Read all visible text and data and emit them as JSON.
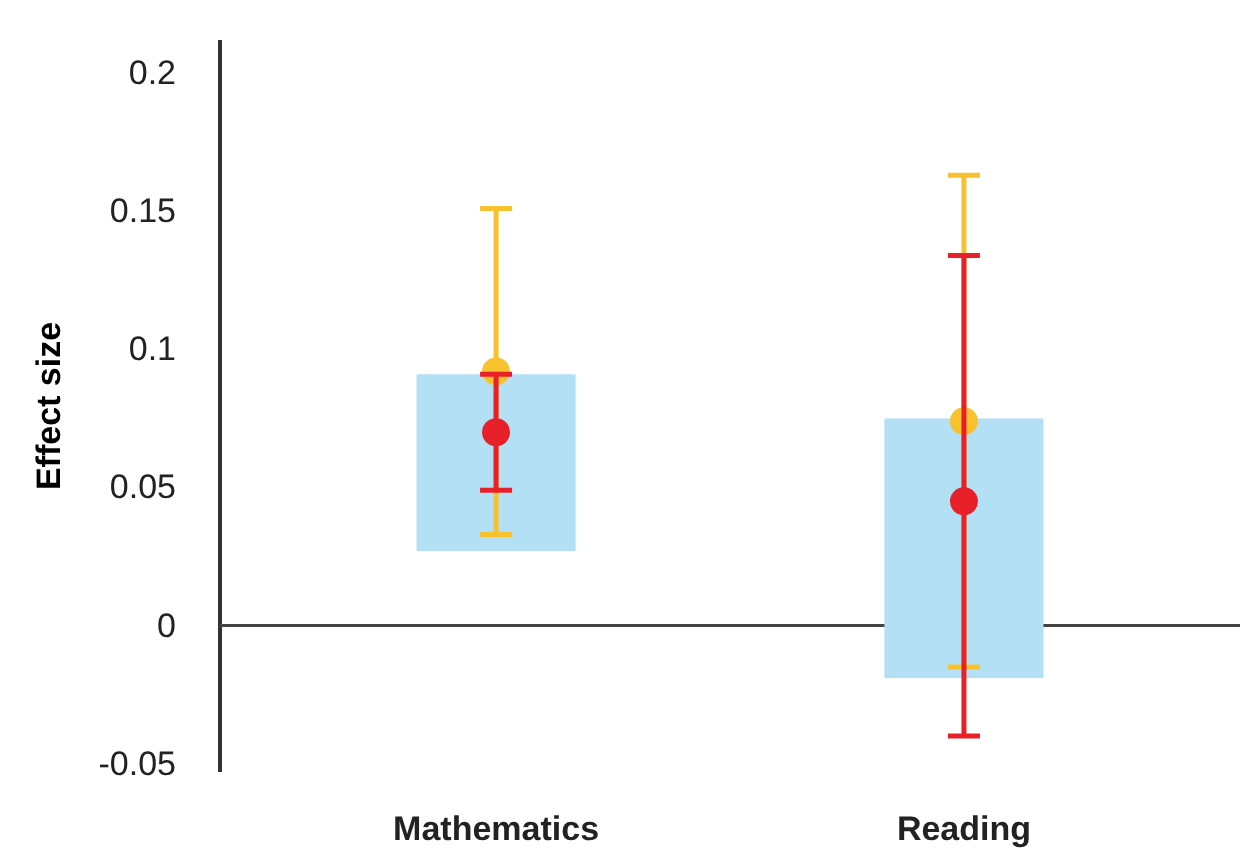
{
  "chart_data": {
    "type": "bar",
    "ylabel": "Effect size",
    "categories": [
      "Mathematics",
      "Reading"
    ],
    "ylim": [
      -0.053,
      0.212
    ],
    "yticks": [
      -0.05,
      0,
      0.05,
      0.1,
      0.15,
      0.2
    ],
    "series": [
      {
        "color": "#b3e0f5",
        "base": [
          0.027,
          -0.019
        ],
        "values": [
          0.064,
          0.094
        ]
      },
      {
        "type": "scatter",
        "color": "#f7c22e",
        "values": [
          0.092,
          0.074
        ],
        "errors": [
          [
            0.033,
            0.151
          ],
          [
            -0.015,
            0.163
          ]
        ]
      },
      {
        "type": "scatter",
        "color": "#e8202a",
        "values": [
          0.07,
          0.045
        ],
        "errors": [
          [
            0.049,
            0.091
          ],
          [
            -0.04,
            0.134
          ]
        ]
      }
    ]
  }
}
